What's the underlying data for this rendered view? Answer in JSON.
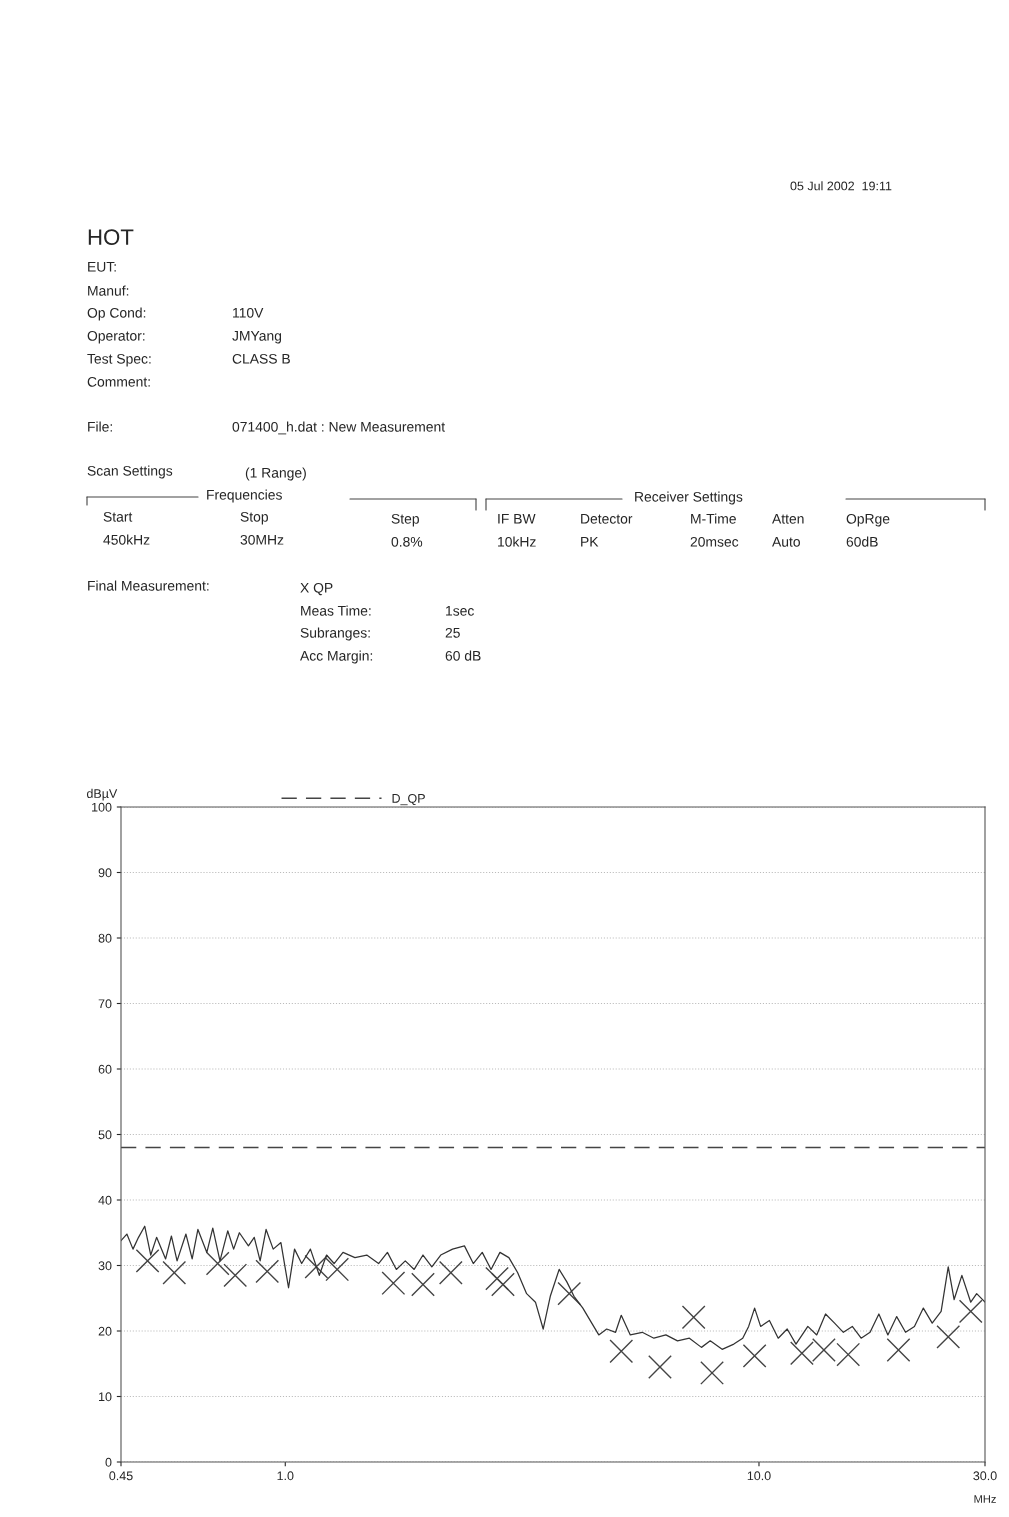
{
  "chart_data": {
    "type": "line",
    "ylabel": "dBµV",
    "xlabel": "MHz",
    "log": "x",
    "xlim": [
      0.45,
      30
    ],
    "xticks": [
      {
        "value": 0.45,
        "label": "0.45"
      },
      {
        "value": 1,
        "label": "1.0"
      },
      {
        "value": 10,
        "label": "10.0"
      },
      {
        "value": 30,
        "label": "30.0"
      }
    ],
    "ylim": [
      0,
      100
    ],
    "yticks": [
      0,
      10,
      20,
      30,
      40,
      50,
      60,
      70,
      80,
      90,
      100
    ],
    "grid": "y",
    "legend": "top",
    "series": [
      {
        "color": "#333333",
        "x": [
          0.45,
          0.463,
          0.477,
          0.49,
          0.505,
          0.52,
          0.535,
          0.559,
          0.575,
          0.591,
          0.617,
          0.636,
          0.654,
          0.683,
          0.703,
          0.728,
          0.756,
          0.778,
          0.8,
          0.836,
          0.86,
          0.885,
          0.911,
          0.943,
          0.979,
          1.016,
          1.046,
          1.083,
          1.13,
          1.18,
          1.222,
          1.268,
          1.324,
          1.403,
          1.486,
          1.574,
          1.643,
          1.716,
          1.792,
          1.871,
          1.953,
          2.039,
          2.129,
          2.255,
          2.389,
          2.494,
          2.605,
          2.719,
          2.839,
          2.965,
          3.095,
          3.232,
          3.374,
          3.503,
          3.626,
          3.786,
          3.93,
          4.069,
          4.248,
          4.436,
          4.59,
          4.77,
          4.98,
          5.12,
          5.35,
          5.67,
          6.0,
          6.36,
          6.73,
          7.13,
          7.56,
          7.89,
          8.36,
          8.85,
          9.24,
          9.51,
          9.79,
          10.08,
          10.52,
          10.98,
          11.47,
          11.97,
          12.68,
          13.24,
          13.82,
          14.44,
          15.07,
          15.74,
          16.43,
          17.16,
          17.91,
          18.71,
          19.53,
          20.39,
          21.29,
          22.23,
          23.21,
          24.24,
          25.09,
          25.82,
          26.81,
          27.99,
          28.81,
          30
        ],
        "values": [
          33.8,
          34.8,
          32.5,
          34.3,
          36,
          31.6,
          34.3,
          31,
          34.5,
          30.7,
          34.8,
          31,
          35.5,
          32,
          35.7,
          30.7,
          35.3,
          32.5,
          35,
          33,
          34.3,
          30.7,
          35.5,
          32.5,
          33.5,
          26.6,
          32.5,
          30.3,
          32.5,
          28.5,
          31.6,
          30.3,
          32,
          31.2,
          31.6,
          30.3,
          32,
          29.4,
          30.7,
          29.4,
          31.6,
          29.8,
          31.6,
          32.5,
          33,
          30.3,
          32,
          29.4,
          32,
          31.2,
          28.9,
          25.7,
          24.4,
          20.3,
          25.3,
          29.4,
          27.5,
          25.3,
          23.5,
          21.2,
          19.4,
          20.3,
          19.8,
          22.4,
          19.4,
          19.8,
          18.9,
          19.4,
          18.5,
          18.9,
          17.5,
          18.5,
          17.2,
          18,
          18.9,
          20.7,
          23.5,
          20.7,
          21.6,
          18.9,
          20.3,
          18,
          20.7,
          19.4,
          22.6,
          21.2,
          19.8,
          20.7,
          18.9,
          19.8,
          22.6,
          19.4,
          22.2,
          19.8,
          20.7,
          23.5,
          21.2,
          23,
          29.8,
          24.8,
          28.5,
          24.4,
          25.7,
          24.4
        ]
      },
      {
        "type": "scatter",
        "marker": "cross",
        "color": "#444444",
        "x": [
          0.512,
          0.583,
          0.72,
          0.784,
          0.916,
          1.163,
          1.287,
          1.691,
          1.953,
          2.236,
          2.799,
          2.881,
          3.976,
          5.12,
          6.18,
          7.28,
          7.96,
          9.79,
          12.32,
          13.71,
          15.43,
          19.7,
          25.09,
          27.99
        ],
        "values": [
          30.7,
          28.9,
          30.3,
          28.5,
          29.1,
          29.8,
          29.4,
          27.3,
          27.1,
          28.9,
          28,
          27.1,
          25.7,
          16.9,
          14.5,
          22.1,
          13.6,
          16.2,
          16.6,
          17.1,
          16.4,
          17.1,
          19.1,
          23
        ]
      },
      {
        "name": "D_QP",
        "line_style": "dashed",
        "color": "#444444",
        "x": [
          0.45,
          30
        ],
        "values": [
          48,
          48
        ]
      }
    ],
    "annotations": [
      "05 Jul 2002  19:11",
      "HOT",
      "EUT:",
      "Manuf:",
      "Op Cond:",
      "110V",
      "Operator:",
      "JMYang",
      "Test Spec:",
      "CLASS B",
      "Comment:",
      "File:",
      "071400_h.dat : New Measurement",
      "Scan Settings",
      "(1 Range)",
      "Frequencies",
      "Start",
      "450kHz",
      "Stop",
      "30MHz",
      "Step",
      "0.8%",
      "Receiver Settings",
      "IF BW",
      "10kHz",
      "Detector",
      "PK",
      "M-Time",
      "20msec",
      "Atten",
      "Auto",
      "OpRge",
      "60dB",
      "Final Measurement:",
      "X QP",
      "Meas Time:",
      "1sec",
      "Subranges:",
      "25",
      "Acc Margin:",
      "60 dB"
    ]
  }
}
